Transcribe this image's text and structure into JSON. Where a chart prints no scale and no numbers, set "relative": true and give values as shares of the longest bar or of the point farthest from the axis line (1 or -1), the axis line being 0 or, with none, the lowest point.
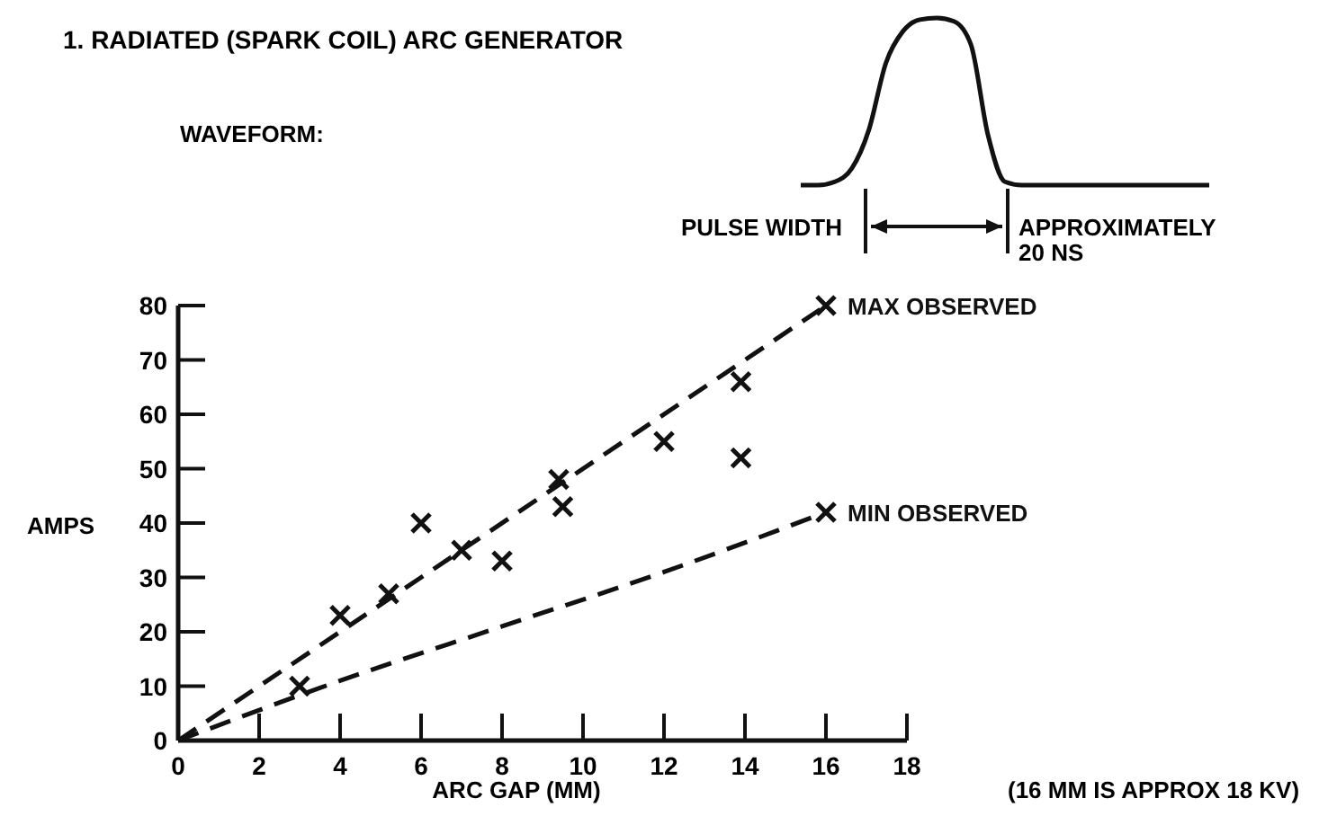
{
  "chart_data": [
    {
      "type": "scatter",
      "title": "1. RADIATED (SPARK COIL) ARC GENERATOR",
      "xlabel": "ARC GAP (MM)",
      "ylabel": "AMPS",
      "annotations": [
        "WAVEFORM:",
        "(16 MM IS APPROX 18 KV)"
      ],
      "series": [
        {
          "color": "#111111",
          "marker": "cross",
          "x": [
            3,
            4,
            5.2,
            6,
            7,
            8,
            9.4,
            9.5,
            12,
            13.9,
            13.9,
            16,
            16
          ],
          "values": [
            10,
            23,
            27,
            40,
            35,
            33,
            48,
            43,
            55,
            66,
            52,
            80,
            42
          ]
        },
        {
          "type": "line",
          "name": "MAX OBSERVED",
          "color": "#111111",
          "line_style": "dashed",
          "x": [
            0,
            16
          ],
          "values": [
            0,
            80
          ]
        },
        {
          "type": "line",
          "name": "MIN OBSERVED",
          "color": "#111111",
          "line_style": "dashed",
          "x": [
            0,
            4,
            8,
            12,
            16
          ],
          "values": [
            0,
            11,
            21,
            31,
            42
          ]
        }
      ],
      "xlim": [
        0,
        18
      ],
      "xticks": [
        0,
        2,
        4,
        6,
        8,
        10,
        12,
        14,
        16,
        18
      ],
      "ylim": [
        0,
        80
      ],
      "yticks": [
        0,
        10,
        20,
        30,
        40,
        50,
        60,
        70,
        80
      ],
      "grid": false,
      "legend": false
    },
    {
      "type": "line",
      "relative": true,
      "annotations": [
        "PULSE WIDTH",
        "APPROXIMATELY",
        "20 NS"
      ],
      "categories": [
        null,
        null,
        null,
        null,
        null,
        null,
        null,
        null,
        null,
        null,
        null,
        null,
        null,
        null,
        null,
        null,
        null,
        null,
        null,
        null,
        null,
        null,
        null,
        null,
        null
      ],
      "series": [
        {
          "color": "#111111",
          "values": [
            0,
            0,
            0.02,
            0.1,
            0.33,
            0.73,
            0.92,
            0.99,
            1,
            0.98,
            0.84,
            0.3,
            0.02,
            0,
            0,
            0,
            0,
            0,
            0,
            0,
            0,
            0,
            0,
            0,
            0
          ]
        }
      ],
      "legend": false
    }
  ]
}
